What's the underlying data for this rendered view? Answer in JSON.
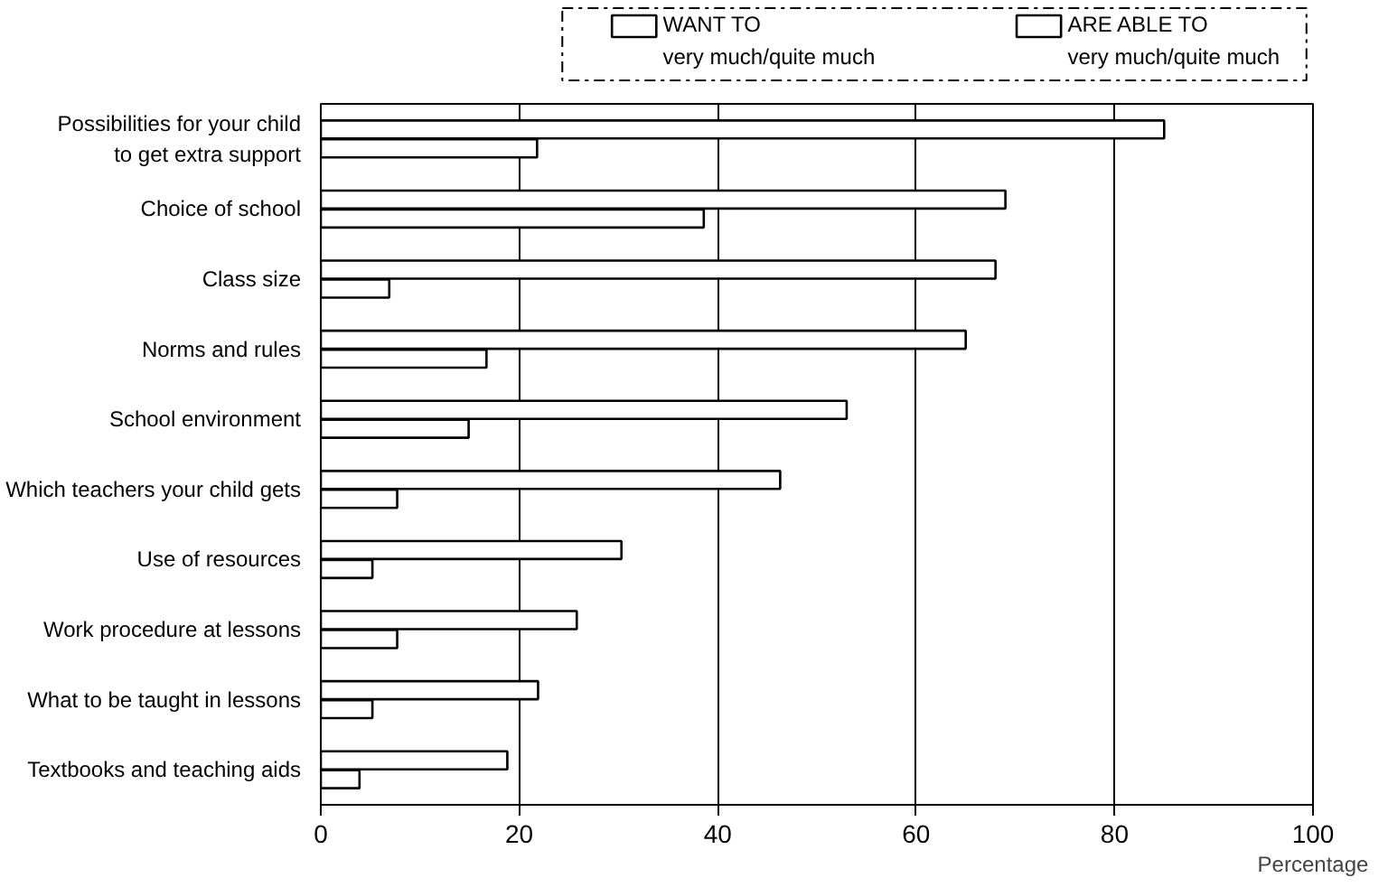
{
  "chart_data": {
    "type": "bar",
    "orientation": "horizontal",
    "xlabel": "Percentage",
    "categories": [
      "Possibilities for your child\nto get extra support",
      "Choice of school",
      "Class size",
      "Norms and rules",
      "School environment",
      "Which teachers your child gets",
      "Use of resources",
      "Work procedure at lessons",
      "What to be taught in lessons",
      "Textbooks and teaching aids"
    ],
    "series": [
      {
        "name": "WANT TO\nvery much/quite much",
        "color": "#ffffff",
        "values": [
          85,
          69,
          68,
          65,
          53,
          46.3,
          30.3,
          25.8,
          21.9,
          18.8
        ]
      },
      {
        "name": "ARE ABLE TO\nvery much/quite much",
        "color": "#ffffff",
        "values": [
          21.8,
          38.6,
          6.9,
          16.7,
          14.9,
          7.7,
          5.2,
          7.7,
          5.2,
          3.9
        ]
      }
    ],
    "xlim": [
      0,
      100
    ],
    "xticks": [
      0,
      20,
      40,
      60,
      80,
      100
    ],
    "grid": "x",
    "legend": "top"
  }
}
